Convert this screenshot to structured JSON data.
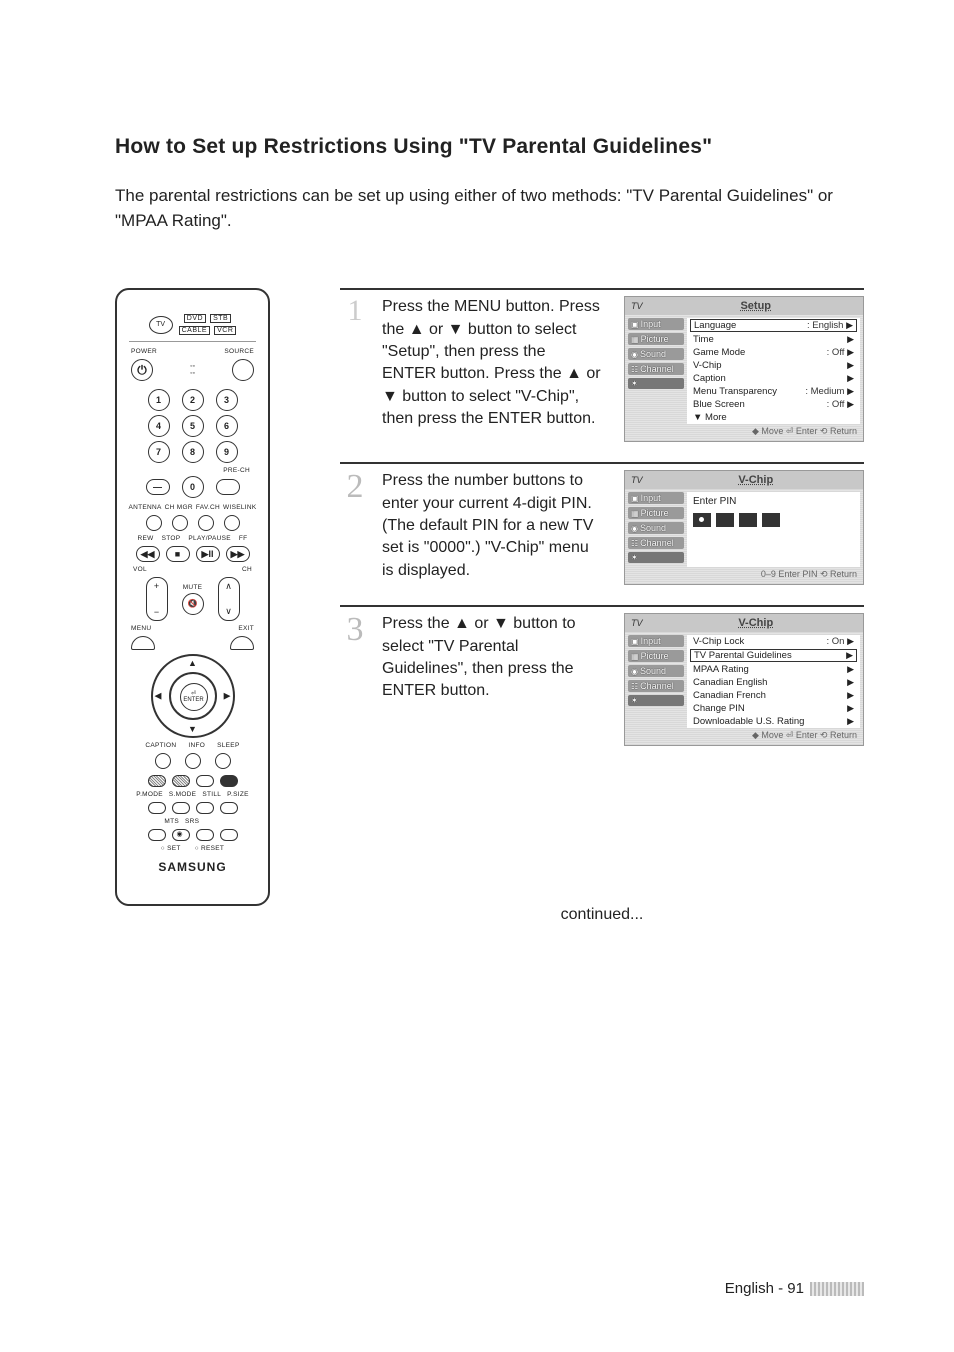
{
  "title": "How to Set up Restrictions Using \"TV Parental Guidelines\"",
  "intro": "The parental restrictions can be set up using either of two methods: \"TV Parental Guidelines\" or \"MPAA Rating\".",
  "remote": {
    "modes": [
      "DVD",
      "STB",
      "CABLE",
      "VCR"
    ],
    "tv": "TV",
    "power": "POWER",
    "source": "SOURCE",
    "numbers": [
      "1",
      "2",
      "3",
      "4",
      "5",
      "6",
      "7",
      "8",
      "9",
      "0"
    ],
    "prech": "PRE-CH",
    "dash": "—",
    "row_labels": [
      "ANTENNA",
      "CH MGR",
      "FAV.CH",
      "WISELINK"
    ],
    "transport": [
      "REW",
      "STOP",
      "PLAY/PAUSE",
      "FF"
    ],
    "vol": "VOL",
    "ch": "CH",
    "mute": "MUTE",
    "menu": "MENU",
    "exit": "EXIT",
    "enter_top": "⏎",
    "enter": "ENTER",
    "caption": "CAPTION",
    "info": "INFO",
    "sleep": "SLEEP",
    "pmode": "P.MODE",
    "smode": "S.MODE",
    "still": "STILL",
    "psize": "P.SIZE",
    "mts": "MTS",
    "srs": "SRS",
    "set": "SET",
    "reset": "RESET",
    "brand": "SAMSUNG"
  },
  "steps": [
    {
      "num": "1",
      "text": "Press the MENU button. Press the ▲ or ▼ button to select \"Setup\", then press the ENTER button. Press the ▲ or ▼ button to select \"V-Chip\", then press the ENTER button.",
      "osd": {
        "tv": "TV",
        "title": "Setup",
        "tabs": [
          "Input",
          "Picture",
          "Sound",
          "Channel"
        ],
        "items": [
          {
            "label": "Language",
            "val": ": English",
            "boxed": true
          },
          {
            "label": "Time",
            "val": ""
          },
          {
            "label": "Game Mode",
            "val": ": Off"
          },
          {
            "label": "V-Chip",
            "val": ""
          },
          {
            "label": "Caption",
            "val": ""
          },
          {
            "label": "Menu Transparency",
            "val": ": Medium"
          },
          {
            "label": "Blue Screen",
            "val": ": Off"
          },
          {
            "label": "▼ More",
            "val": "",
            "nochev": true
          }
        ],
        "footer": "◆ Move    ⏎ Enter    ⟲ Return"
      }
    },
    {
      "num": "2",
      "text": "Press the number buttons to enter your current 4-digit PIN. (The default PIN for a new TV set is \"0000\".) \"V-Chip\" menu is displayed.",
      "osd": {
        "tv": "TV",
        "title": "V-Chip",
        "tabs": [
          "Input",
          "Picture",
          "Sound",
          "Channel"
        ],
        "enter_pin": "Enter PIN",
        "footer": "0–9 Enter PIN    ⟲ Return"
      }
    },
    {
      "num": "3",
      "text": "Press the ▲ or ▼ button to select \"TV Parental Guidelines\", then press the ENTER button.",
      "osd": {
        "tv": "TV",
        "title": "V-Chip",
        "tabs": [
          "Input",
          "Picture",
          "Sound",
          "Channel"
        ],
        "items": [
          {
            "label": "V-Chip Lock",
            "val": ": On"
          },
          {
            "label": "TV Parental Guidelines",
            "val": "",
            "boxed": true
          },
          {
            "label": "MPAA Rating",
            "val": ""
          },
          {
            "label": "Canadian English",
            "val": ""
          },
          {
            "label": "Canadian French",
            "val": ""
          },
          {
            "label": "Change PIN",
            "val": ""
          },
          {
            "label": "Downloadable U.S. Rating",
            "val": ""
          }
        ],
        "footer": "◆ Move    ⏎ Enter    ⟲ Return"
      }
    }
  ],
  "continued": "continued...",
  "footer": "English - 91"
}
